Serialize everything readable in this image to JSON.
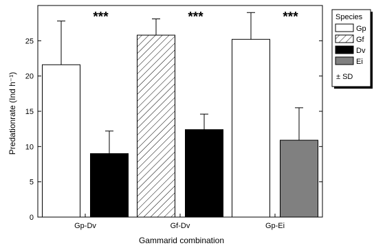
{
  "chart_data": {
    "type": "bar",
    "xlabel": "Gammarid combination",
    "ylabel": "Predationrate (Ind h⁻¹)",
    "ylim": [
      0,
      30
    ],
    "yticks": [
      0,
      5,
      10,
      15,
      20,
      25
    ],
    "groups": [
      {
        "label": "Gp-Dv",
        "significance": "***",
        "bars": [
          {
            "species": "Gp",
            "value": 21.6,
            "sd": 6.2
          },
          {
            "species": "Dv",
            "value": 9.0,
            "sd": 3.2
          }
        ]
      },
      {
        "label": "Gf-Dv",
        "significance": "***",
        "bars": [
          {
            "species": "Gf",
            "value": 25.8,
            "sd": 2.3
          },
          {
            "species": "Dv",
            "value": 12.4,
            "sd": 2.2
          }
        ]
      },
      {
        "label": "Gp-Ei",
        "significance": "***",
        "bars": [
          {
            "species": "Gp",
            "value": 25.2,
            "sd": 3.8
          },
          {
            "species": "Ei",
            "value": 10.9,
            "sd": 4.6
          }
        ]
      }
    ],
    "legend": {
      "title": "Species",
      "position": "right",
      "entries": [
        {
          "name": "Gp",
          "style": "white"
        },
        {
          "name": "Gf",
          "style": "hatched"
        },
        {
          "name": "Dv",
          "style": "black"
        },
        {
          "name": "Ei",
          "style": "gray"
        }
      ],
      "sd_label": "± SD"
    },
    "colors": {
      "Gp": "#ffffff",
      "Gf": "hatch",
      "Dv": "#000000",
      "Ei": "#808080"
    }
  }
}
